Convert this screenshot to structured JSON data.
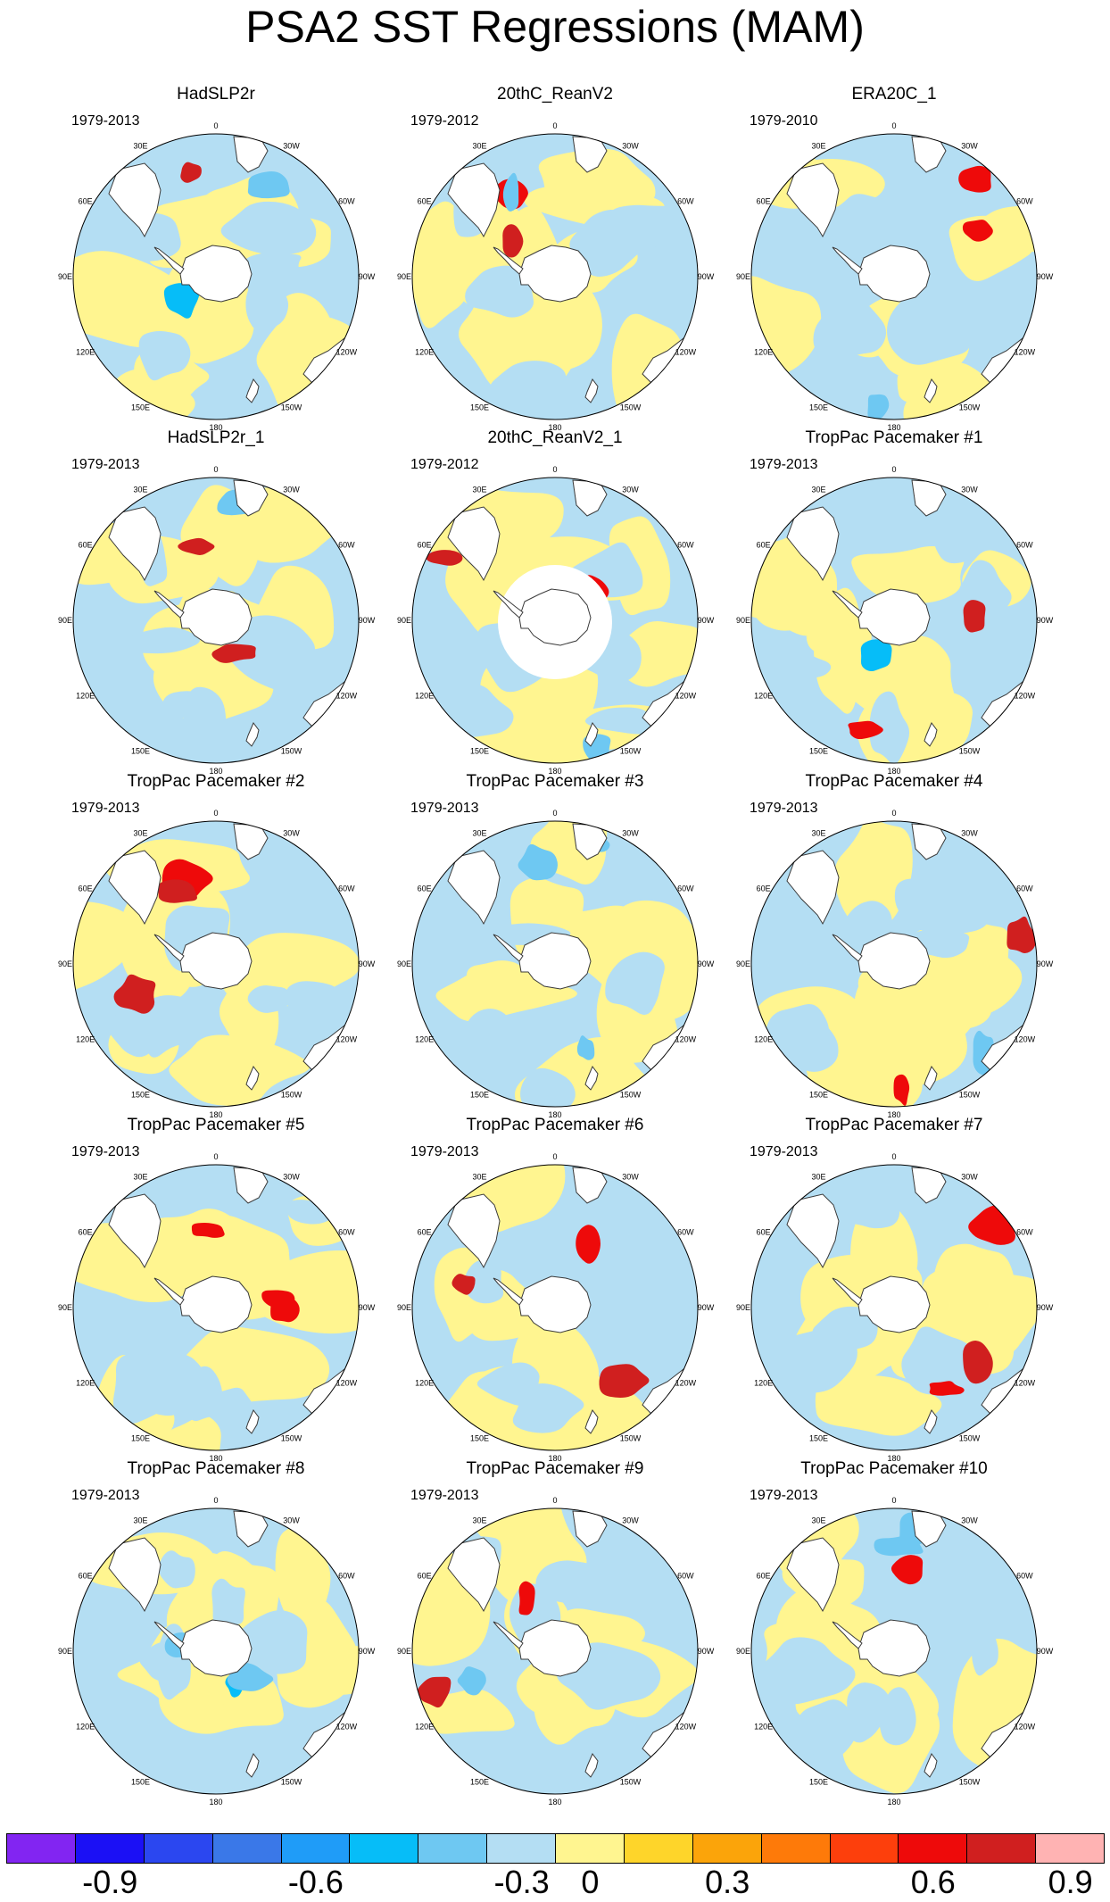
{
  "title": "PSA2 SST Regressions (MAM)",
  "colors": {
    "land": "#ffffff",
    "coast": "#3a3a3a",
    "frame": "#000000",
    "fill_neg": "#b4def3",
    "fill_pos": "#fff590"
  },
  "icons": {
    "map": "south-polar-stereographic-map"
  },
  "lon_labels": [
    "0",
    "30E",
    "60E",
    "90E",
    "120E",
    "150E",
    "180",
    "150W",
    "120W",
    "90W",
    "60W",
    "30W"
  ],
  "panels": [
    {
      "title": "HadSLP2r",
      "period": "1979-2013",
      "seed": 3
    },
    {
      "title": "20thC_ReanV2",
      "period": "1979-2012",
      "seed": 7
    },
    {
      "title": "ERA20C_1",
      "period": "1979-2010",
      "seed": 11
    },
    {
      "title": "HadSLP2r_1",
      "period": "1979-2013",
      "seed": 13
    },
    {
      "title": "20thC_ReanV2_1",
      "period": "1979-2012",
      "seed": 17,
      "ice_hole": true
    },
    {
      "title": "TropPac Pacemaker #1",
      "period": "1979-2013",
      "seed": 19
    },
    {
      "title": "TropPac Pacemaker #2",
      "period": "1979-2013",
      "seed": 23
    },
    {
      "title": "TropPac Pacemaker #3",
      "period": "1979-2013",
      "seed": 29
    },
    {
      "title": "TropPac Pacemaker #4",
      "period": "1979-2013",
      "seed": 31
    },
    {
      "title": "TropPac Pacemaker #5",
      "period": "1979-2013",
      "seed": 37
    },
    {
      "title": "TropPac Pacemaker #6",
      "period": "1979-2013",
      "seed": 41
    },
    {
      "title": "TropPac Pacemaker #7",
      "period": "1979-2013",
      "seed": 43
    },
    {
      "title": "TropPac Pacemaker #8",
      "period": "1979-2013",
      "seed": 47
    },
    {
      "title": "TropPac Pacemaker #9",
      "period": "1979-2013",
      "seed": 53
    },
    {
      "title": "TropPac Pacemaker #10",
      "period": "1979-2013",
      "seed": 59
    }
  ],
  "chart_data": {
    "type": "heatmap",
    "title": "PSA2 SST Regressions (MAM)",
    "projection": "south polar stereographic",
    "colorbar": {
      "levels": [
        -1.0,
        -0.9,
        -0.8,
        -0.7,
        -0.6,
        -0.5,
        -0.4,
        -0.3,
        -0.2,
        -0.1,
        0,
        0.1,
        0.2,
        0.3,
        0.4,
        0.5,
        0.6,
        0.7,
        0.8,
        0.9,
        1.0
      ],
      "colors": [
        "#8225f2",
        "#1b10f5",
        "#2b47f0",
        "#3a78e8",
        "#1f9cf8",
        "#06bdf8",
        "#6ec8f2",
        "#b4def3",
        "#fff590",
        "#fed52a",
        "#fba40a",
        "#fe7a09",
        "#fd3f0c",
        "#ee0a0a",
        "#d01f1f",
        "#ffb3b3"
      ],
      "tick_values": [
        -0.9,
        -0.6,
        -0.3,
        0,
        0.3,
        0.6,
        0.9
      ],
      "tick_labels": [
        "-0.9",
        "-0.6",
        "-0.3",
        "0",
        "0.3",
        "0.6",
        "0.9"
      ],
      "tick_color_index": [
        1,
        4,
        7,
        8,
        10,
        13,
        15
      ]
    }
  }
}
